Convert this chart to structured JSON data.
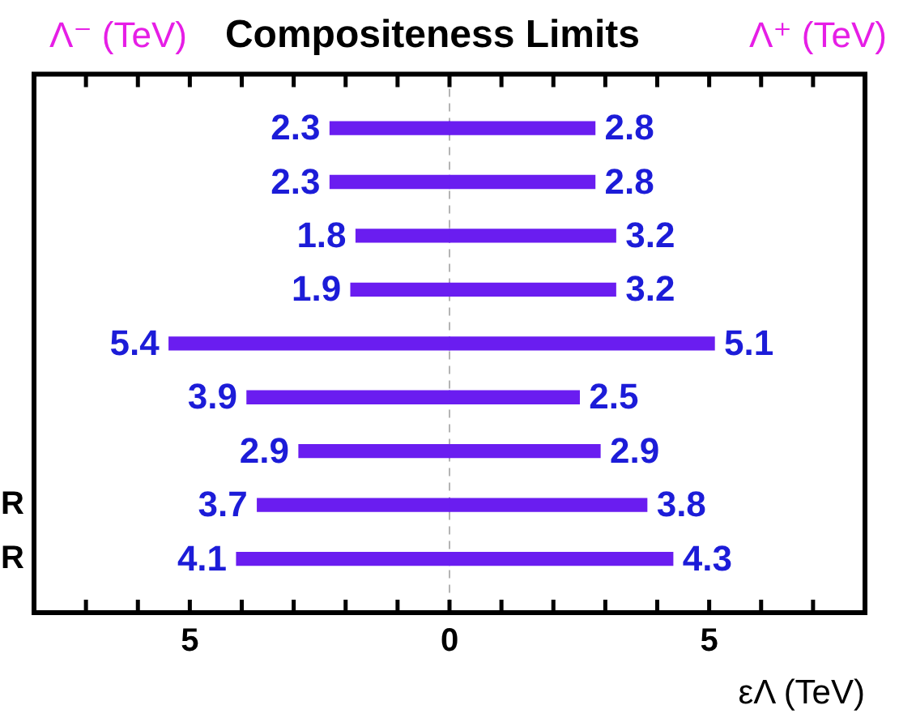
{
  "chart_data": {
    "type": "bar",
    "orientation": "horizontal",
    "title": "Compositeness Limits",
    "xlabel": "εΛ (TeV)",
    "annotations": [
      "Λ⁻ (TeV)",
      "Λ⁺ (TeV)"
    ],
    "categories": [
      null,
      null,
      null,
      null,
      null,
      null,
      null,
      "R",
      "R"
    ],
    "series": [
      {
        "color": "#6a1df0",
        "base": [
          -2.3,
          -2.3,
          -1.8,
          -1.9,
          -5.4,
          -3.9,
          -2.9,
          -3.7,
          -4.1
        ],
        "values": [
          2.3,
          2.3,
          1.8,
          1.9,
          5.4,
          3.9,
          2.9,
          3.7,
          4.1
        ],
        "value_labels": [
          "2.3",
          "2.3",
          "1.8",
          "1.9",
          "5.4",
          "3.9",
          "2.9",
          "3.7",
          "4.1"
        ]
      },
      {
        "color": "#6a1df0",
        "values": [
          2.8,
          2.8,
          3.2,
          3.2,
          5.1,
          2.5,
          2.9,
          3.8,
          4.3
        ],
        "value_labels": [
          "2.8",
          "2.8",
          "3.2",
          "3.2",
          "5.1",
          "2.5",
          "2.9",
          "3.8",
          "4.3"
        ]
      }
    ],
    "xlim": [
      -8,
      8
    ],
    "xticks": [
      {
        "value": -7,
        "label": null
      },
      {
        "value": -6,
        "label": null
      },
      {
        "value": -5,
        "label": "5"
      },
      {
        "value": -4,
        "label": null
      },
      {
        "value": -3,
        "label": null
      },
      {
        "value": -2,
        "label": null
      },
      {
        "value": -1,
        "label": null
      },
      0,
      {
        "value": 1,
        "label": null
      },
      {
        "value": 2,
        "label": null
      },
      {
        "value": 3,
        "label": null
      },
      {
        "value": 4,
        "label": null
      },
      5,
      {
        "value": 6,
        "label": null
      },
      {
        "value": 7,
        "label": null
      }
    ],
    "ref_lines": [
      {
        "axis": "x",
        "value": 0,
        "color": "#b4b4b4",
        "line_style": "dashed"
      }
    ]
  }
}
